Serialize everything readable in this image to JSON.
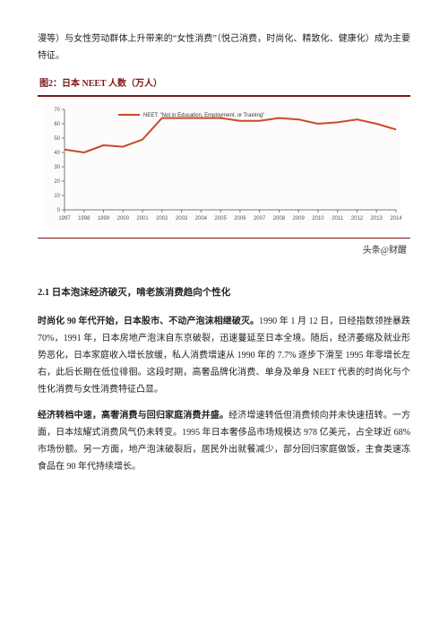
{
  "lead_text": "漫等）与女性劳动群体上升带来的“女性消费”（悦己消费，时尚化、精致化、健康化）成为主要特征。",
  "figure": {
    "title": "图2：日本 NEET 人数（万人）",
    "legend_label": "NEET: \"Not in Education, Employment, or Training\"",
    "legend_color": "#c84a2a",
    "chart": {
      "type": "line",
      "xlabels": [
        "1997",
        "1998",
        "1999",
        "2000",
        "2001",
        "2002",
        "2003",
        "2004",
        "2005",
        "2006",
        "2007",
        "2008",
        "2009",
        "2010",
        "2011",
        "2012",
        "2013",
        "2014"
      ],
      "ylim": [
        0,
        70
      ],
      "ytick_step": 10,
      "values": [
        42,
        40,
        45,
        44,
        49,
        64,
        64,
        64,
        64,
        62,
        62,
        64,
        63,
        60,
        61,
        63,
        60,
        56
      ],
      "line_color": "#c84a2a",
      "line_width": 2,
      "axis_color": "#7a7a7a",
      "tick_font_size": 6,
      "legend_font_size": 6,
      "background_color": "#fdfcfb"
    }
  },
  "source": "头条@财醒",
  "section_heading": "2.1 日本泡沫经济破灭，啃老族消费趋向个性化",
  "para1_bold": "时尚化 90 年代开始，日本股市、不动产泡沫相继破灭。",
  "para1_rest": "1990 年 1 月 12 日，日经指数领挫暴跌 70%，1991 年，日本房地产泡沫自东京破裂，迅速蔓延至日本全境。随后，经济萎缩及就业形势恶化，日本家庭收入增长放缓，私人消费增速从 1990 年的 7.7% 逐步下滑至 1995 年零增长左右，此后长期在低位徘徊。这段时期，高奢品牌化消费、单身及单身 NEET 代表的时尚化与个性化消费与女性消费特征凸显。",
  "para2_bold": "经济转档中速，高奢消费与回归家庭消费并盛。",
  "para2_rest": "经济增速转低但消费倾向并未快速扭转。一方面，日本炫耀式消费风气仍未转变。1995 年日本奢侈品市场规模达 978 亿美元，占全球近 68% 市场份额。另一方面，地产泡沫破裂后，居民外出就餐减少，部分回归家庭做饭，主食类速冻食品在 90 年代持续增长。"
}
